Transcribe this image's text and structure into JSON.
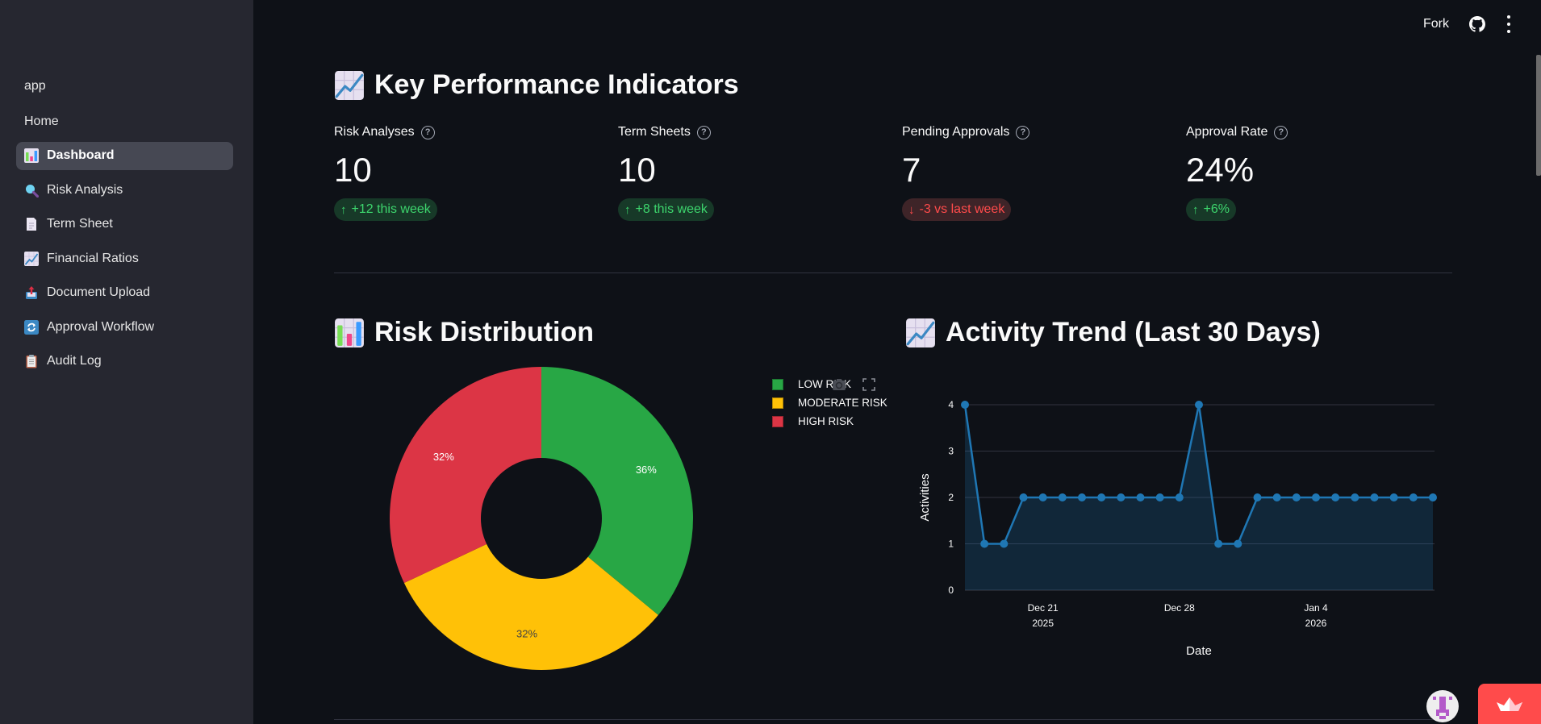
{
  "sidebar": {
    "app_label": "app",
    "items": [
      {
        "label": "Home",
        "icon": "",
        "active": false
      },
      {
        "label": "Dashboard",
        "icon": "bar-chart-icon",
        "active": true
      },
      {
        "label": "Risk Analysis",
        "icon": "magnifier-icon",
        "active": false
      },
      {
        "label": "Term Sheet",
        "icon": "page-icon",
        "active": false
      },
      {
        "label": "Financial Ratios",
        "icon": "chart-increasing-icon",
        "active": false
      },
      {
        "label": "Document Upload",
        "icon": "outbox-tray-icon",
        "active": false
      },
      {
        "label": "Approval Workflow",
        "icon": "arrows-cycle-icon",
        "active": false
      },
      {
        "label": "Audit Log",
        "icon": "clipboard-icon",
        "active": false
      }
    ]
  },
  "topbar": {
    "fork_label": "Fork"
  },
  "kpi": {
    "title": "Key Performance Indicators",
    "metrics": [
      {
        "label": "Risk Analyses",
        "value": "10",
        "delta": "+12 this week",
        "direction": "up"
      },
      {
        "label": "Term Sheets",
        "value": "10",
        "delta": "+8 this week",
        "direction": "up"
      },
      {
        "label": "Pending Approvals",
        "value": "7",
        "delta": "-3 vs last week",
        "direction": "down"
      },
      {
        "label": "Approval Rate",
        "value": "24%",
        "delta": "+6%",
        "direction": "up"
      }
    ],
    "help_glyph": "?",
    "arrow_up": "↑",
    "arrow_down": "↓"
  },
  "risk_section": {
    "title": "Risk Distribution"
  },
  "activity_section": {
    "title": "Activity Trend (Last 30 Days)"
  },
  "colors": {
    "low": "#28a745",
    "moderate": "#ffc107",
    "high": "#dc3545",
    "line": "#1f77b4",
    "accent": "#ff4b4b"
  },
  "chart_data": [
    {
      "type": "pie",
      "title": "Risk Distribution",
      "hole": true,
      "labels": [
        "LOW RISK",
        "MODERATE RISK",
        "HIGH RISK"
      ],
      "values": [
        36,
        32,
        32
      ],
      "value_labels": [
        "36%",
        "32%",
        "32%"
      ],
      "colors": [
        "#28a745",
        "#ffc107",
        "#dc3545"
      ],
      "legend": "right"
    },
    {
      "type": "area",
      "title": "Activity Trend (Last 30 Days)",
      "xlabel": "Date",
      "ylabel": "Activities",
      "x": [
        "2025-12-17",
        "2025-12-18",
        "2025-12-19",
        "2025-12-20",
        "2025-12-21",
        "2025-12-22",
        "2025-12-23",
        "2025-12-24",
        "2025-12-25",
        "2025-12-26",
        "2025-12-27",
        "2025-12-28",
        "2025-12-29",
        "2025-12-30",
        "2025-12-31",
        "2026-01-01",
        "2026-01-02",
        "2026-01-03",
        "2026-01-04",
        "2026-01-05",
        "2026-01-06",
        "2026-01-07",
        "2026-01-08",
        "2026-01-09",
        "2026-01-10"
      ],
      "values": [
        4,
        1,
        1,
        2,
        2,
        2,
        2,
        2,
        2,
        2,
        2,
        2,
        4,
        1,
        1,
        2,
        2,
        2,
        2,
        2,
        2,
        2,
        2,
        2,
        2
      ],
      "ylim": [
        0,
        4
      ],
      "yticks": [
        "0",
        "1",
        "2",
        "3",
        "4"
      ],
      "xticks": [
        {
          "index": 4,
          "line1": "Dec 21",
          "line2": "2025"
        },
        {
          "index": 11,
          "line1": "Dec 28",
          "line2": ""
        },
        {
          "index": 18,
          "line1": "Jan 4",
          "line2": "2026"
        }
      ],
      "grid": true,
      "markers": true
    }
  ]
}
